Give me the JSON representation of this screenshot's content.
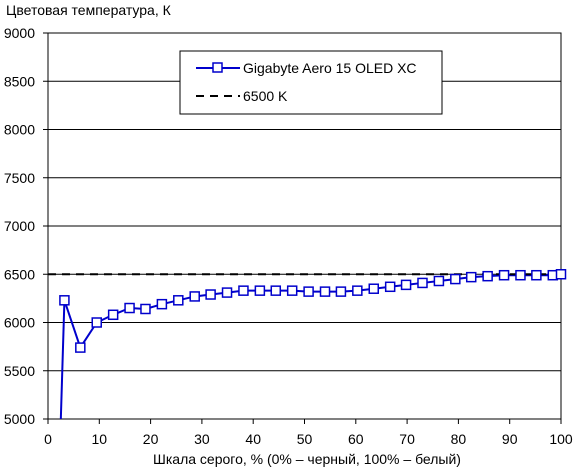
{
  "chart_data": {
    "type": "line",
    "title": "",
    "ylabel": "Цветовая температура, К",
    "xlabel": "Шкала серого, % (0% – черный, 100% – белый)",
    "xlim": [
      0,
      100
    ],
    "ylim": [
      5000,
      9000
    ],
    "xticks": [
      0,
      10,
      20,
      30,
      40,
      50,
      60,
      70,
      80,
      90,
      100
    ],
    "yticks": [
      5000,
      5500,
      6000,
      6500,
      7000,
      7500,
      8000,
      8500,
      9000
    ],
    "xtick_labels": [
      "0",
      "10",
      "20",
      "30",
      "40",
      "50",
      "60",
      "70",
      "80",
      "90",
      "100"
    ],
    "ytick_labels": [
      "5000",
      "5500",
      "6000",
      "6500",
      "7000",
      "7500",
      "8000",
      "8500",
      "9000"
    ],
    "grid": "horizontal",
    "legend_position": "top-center",
    "series": [
      {
        "name": "Gigabyte Aero 15 OLED XC",
        "color": "#0000cc",
        "marker": "open-square",
        "x": [
          2.5,
          3.2,
          6.3,
          9.5,
          12.7,
          15.9,
          19.0,
          22.2,
          25.4,
          28.6,
          31.7,
          34.9,
          38.1,
          41.3,
          44.4,
          47.6,
          50.8,
          54.0,
          57.1,
          60.3,
          63.5,
          66.7,
          69.8,
          73.0,
          76.2,
          79.4,
          82.5,
          85.7,
          88.9,
          92.1,
          95.2,
          98.4,
          100
        ],
        "y": [
          5000,
          6230,
          5740,
          6000,
          6080,
          6150,
          6140,
          6190,
          6230,
          6270,
          6290,
          6310,
          6330,
          6330,
          6330,
          6330,
          6320,
          6320,
          6320,
          6330,
          6350,
          6370,
          6390,
          6410,
          6430,
          6450,
          6470,
          6480,
          6490,
          6490,
          6490,
          6490,
          6500
        ],
        "marker_start_index": 1
      },
      {
        "name": "6500 K",
        "color": "#000000",
        "style": "dashed",
        "x": [
          0,
          100
        ],
        "y": [
          6500,
          6500
        ]
      }
    ]
  }
}
